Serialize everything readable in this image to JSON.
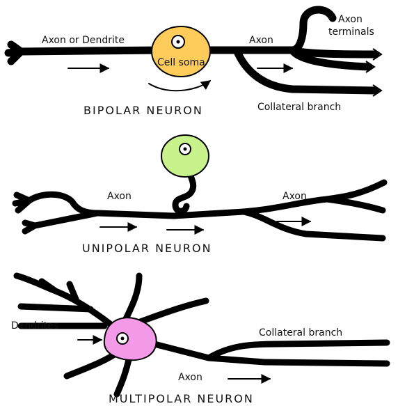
{
  "colors": {
    "bipolar": "#FFCC5C",
    "unipolar": "#C8F28C",
    "multipolar": "#F29AE8",
    "outline": "#000000"
  },
  "bipolar": {
    "title": "BIPOLAR NEURON",
    "label_axon_or_dendrite": "Axon or Dendrite",
    "label_cell_soma": "Cell soma",
    "label_axon": "Axon",
    "label_axon_terminals_1": "Axon",
    "label_axon_terminals_2": "terminals",
    "label_collateral": "Collateral branch"
  },
  "unipolar": {
    "title": "UNIPOLAR NEURON",
    "label_axon_left": "Axon",
    "label_axon_right": "Axon"
  },
  "multipolar": {
    "title": "MULTIPOLAR NEURON",
    "label_dendrites": "Dendrites",
    "label_collateral": "Collateral branch",
    "label_axon": "Axon"
  }
}
